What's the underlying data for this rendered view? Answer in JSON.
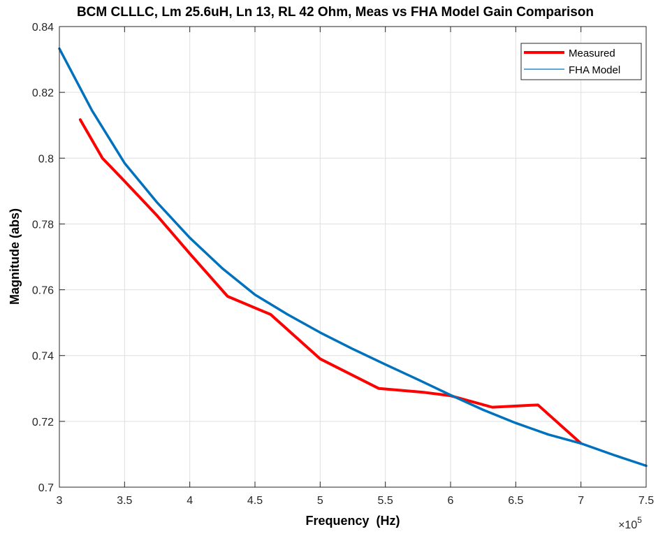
{
  "chart_data": {
    "type": "line",
    "title": "BCM CLLLC, Lm 25.6uH, Ln 13, RL 42 Ohm, Meas vs FHA Model Gain Comparison",
    "xlabel": "Frequency  (Hz)",
    "ylabel": "Magnitude (abs)",
    "x_multiplier_prefix": "×10",
    "x_multiplier_exponent": "5",
    "xlim": [
      3,
      7.5
    ],
    "ylim": [
      0.7,
      0.84
    ],
    "xticks": [
      3,
      3.5,
      4,
      4.5,
      5,
      5.5,
      6,
      6.5,
      7,
      7.5
    ],
    "xtick_labels": [
      "3",
      "3.5",
      "4",
      "4.5",
      "5",
      "5.5",
      "6",
      "6.5",
      "7",
      "7.5"
    ],
    "yticks": [
      0.7,
      0.72,
      0.74,
      0.76,
      0.78,
      0.8,
      0.82,
      0.84
    ],
    "ytick_labels": [
      "0.7",
      "0.72",
      "0.74",
      "0.76",
      "0.78",
      "0.8",
      "0.82",
      "0.84"
    ],
    "grid": true,
    "legend_position": "top-right",
    "series": [
      {
        "name": "Measured",
        "color": "#ff0000",
        "x": [
          3.16,
          3.33,
          3.5,
          3.75,
          4.0,
          4.29,
          4.62,
          5.0,
          5.45,
          5.8,
          6.0,
          6.32,
          6.67,
          7.0
        ],
        "y": [
          0.8117,
          0.8,
          0.793,
          0.7825,
          0.771,
          0.758,
          0.7525,
          0.739,
          0.73,
          0.7288,
          0.7278,
          0.7243,
          0.725,
          0.7133
        ]
      },
      {
        "name": "FHA Model",
        "color": "#0072bd",
        "x": [
          3.0,
          3.25,
          3.5,
          3.75,
          4.0,
          4.25,
          4.5,
          4.75,
          5.0,
          5.25,
          5.5,
          5.75,
          6.0,
          6.25,
          6.5,
          6.75,
          7.0,
          7.25,
          7.5
        ],
        "y": [
          0.8333,
          0.8145,
          0.7985,
          0.7865,
          0.7758,
          0.7665,
          0.7585,
          0.7525,
          0.747,
          0.742,
          0.7373,
          0.7327,
          0.728,
          0.7235,
          0.7195,
          0.716,
          0.7133,
          0.7098,
          0.7065
        ]
      }
    ]
  }
}
